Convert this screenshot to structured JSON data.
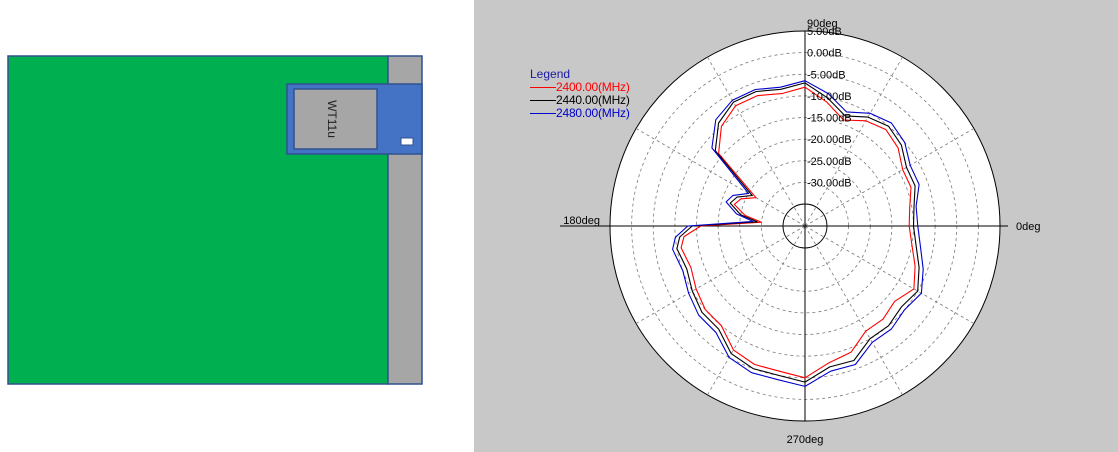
{
  "board": {
    "module_label": "WT11u",
    "colors": {
      "pcb": "#00b050",
      "antenna_strip": "#a6a6a6",
      "module_outer": "#4472c4",
      "module_inner": "#a6a6a6",
      "outline": "#2f528f"
    }
  },
  "chart_data": {
    "type": "polar",
    "legend": {
      "title": "Legend",
      "entries": [
        "2400.00(MHz)",
        "2440.00(MHz)",
        "2480.00(MHz)"
      ],
      "placement": "top-left"
    },
    "angle_labels": {
      "top": "90deg",
      "left": "180deg",
      "right": "0deg",
      "bottom": "270deg"
    },
    "radial_labels": [
      "5.00dB",
      "0.00dB",
      "-5.00dB",
      "-10.00dB",
      "-15.00dB",
      "-20.00dB",
      "-25.00dB",
      "-30.00dB"
    ],
    "r_range_db": [
      -35,
      5
    ],
    "grid": true,
    "series": [
      {
        "name": "2400.00(MHz)",
        "color": "#ff0000",
        "points": [
          [
            0,
            -16
          ],
          [
            10,
            -15.5
          ],
          [
            20,
            -14
          ],
          [
            30,
            -14
          ],
          [
            40,
            -12
          ],
          [
            50,
            -11
          ],
          [
            60,
            -12
          ],
          [
            70,
            -14
          ],
          [
            80,
            -11
          ],
          [
            90,
            -8
          ],
          [
            100,
            -9
          ],
          [
            110,
            -8
          ],
          [
            120,
            -8
          ],
          [
            130,
            -10
          ],
          [
            140,
            -14
          ],
          [
            150,
            -27
          ],
          [
            157,
            -24
          ],
          [
            163,
            -23
          ],
          [
            170,
            -26
          ],
          [
            175,
            -30
          ],
          [
            180,
            -16
          ],
          [
            185,
            -12
          ],
          [
            190,
            -11
          ],
          [
            200,
            -12
          ],
          [
            210,
            -11
          ],
          [
            220,
            -10
          ],
          [
            230,
            -10
          ],
          [
            240,
            -7
          ],
          [
            250,
            -6
          ],
          [
            260,
            -6
          ],
          [
            270,
            -5
          ],
          [
            280,
            -8
          ],
          [
            290,
            -9
          ],
          [
            300,
            -12
          ],
          [
            310,
            -12
          ],
          [
            320,
            -13
          ],
          [
            330,
            -11
          ],
          [
            340,
            -13
          ],
          [
            350,
            -15
          ]
        ]
      },
      {
        "name": "2440.00(MHz)",
        "color": "#000000",
        "points": [
          [
            0,
            -15
          ],
          [
            10,
            -14.5
          ],
          [
            20,
            -13
          ],
          [
            30,
            -13
          ],
          [
            40,
            -11
          ],
          [
            50,
            -10
          ],
          [
            60,
            -11
          ],
          [
            70,
            -13
          ],
          [
            80,
            -10
          ],
          [
            90,
            -7
          ],
          [
            100,
            -8
          ],
          [
            110,
            -7
          ],
          [
            120,
            -7
          ],
          [
            130,
            -9
          ],
          [
            140,
            -13
          ],
          [
            150,
            -26
          ],
          [
            157,
            -23
          ],
          [
            163,
            -22
          ],
          [
            170,
            -25
          ],
          [
            175,
            -29
          ],
          [
            180,
            -14
          ],
          [
            185,
            -11
          ],
          [
            190,
            -10
          ],
          [
            200,
            -11
          ],
          [
            210,
            -10
          ],
          [
            220,
            -9
          ],
          [
            230,
            -9
          ],
          [
            240,
            -6
          ],
          [
            250,
            -5
          ],
          [
            260,
            -5
          ],
          [
            270,
            -4
          ],
          [
            280,
            -7
          ],
          [
            290,
            -7
          ],
          [
            300,
            -10
          ],
          [
            310,
            -10
          ],
          [
            320,
            -11
          ],
          [
            330,
            -10
          ],
          [
            340,
            -12
          ],
          [
            350,
            -14
          ]
        ]
      },
      {
        "name": "2480.00(MHz)",
        "color": "#0000cc",
        "points": [
          [
            0,
            -14
          ],
          [
            10,
            -14
          ],
          [
            20,
            -12
          ],
          [
            30,
            -12
          ],
          [
            40,
            -10
          ],
          [
            50,
            -9
          ],
          [
            60,
            -10
          ],
          [
            70,
            -12
          ],
          [
            80,
            -9
          ],
          [
            90,
            -6.5
          ],
          [
            100,
            -7.5
          ],
          [
            110,
            -6.5
          ],
          [
            120,
            -6.5
          ],
          [
            130,
            -8
          ],
          [
            140,
            -12
          ],
          [
            150,
            -25
          ],
          [
            157,
            -22
          ],
          [
            163,
            -21
          ],
          [
            170,
            -24
          ],
          [
            175,
            -28
          ],
          [
            180,
            -13
          ],
          [
            185,
            -10
          ],
          [
            190,
            -9
          ],
          [
            200,
            -10
          ],
          [
            210,
            -9
          ],
          [
            220,
            -8
          ],
          [
            230,
            -8
          ],
          [
            240,
            -5
          ],
          [
            250,
            -4
          ],
          [
            260,
            -4
          ],
          [
            270,
            -3
          ],
          [
            280,
            -6
          ],
          [
            290,
            -6
          ],
          [
            300,
            -9
          ],
          [
            310,
            -9
          ],
          [
            320,
            -10
          ],
          [
            330,
            -9
          ],
          [
            340,
            -11
          ],
          [
            350,
            -13
          ]
        ]
      }
    ]
  }
}
